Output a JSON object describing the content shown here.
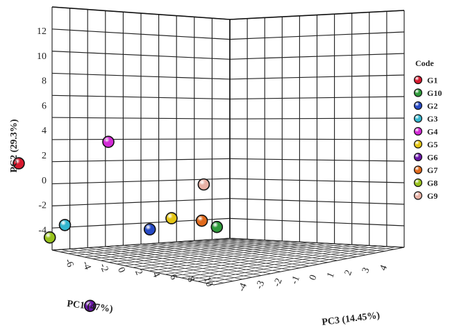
{
  "chart_data": {
    "type": "scatter",
    "projection": "3d",
    "axes": {
      "x": {
        "label": "PC1 (47%)",
        "ticks": [
          "-6",
          "-4",
          "-2",
          "0",
          "2",
          "4",
          "6",
          "8",
          "10"
        ]
      },
      "y": {
        "label": "PC2 (29.3%)",
        "ticks": [
          "12",
          "10",
          "8",
          "6",
          "4",
          "2",
          "0",
          "-2",
          "-4"
        ]
      },
      "z": {
        "label": "PC3 (14.45%)",
        "ticks": [
          "-4",
          "-3",
          "-2",
          "-1",
          "0",
          "1",
          "2",
          "3",
          "4"
        ]
      }
    },
    "grid": true,
    "legend": {
      "title": "Code",
      "placement": "right",
      "entries": [
        {
          "label": "G1",
          "color": "#d7192e"
        },
        {
          "label": "G10",
          "color": "#2e9a3a"
        },
        {
          "label": "G2",
          "color": "#2649c4"
        },
        {
          "label": "G3",
          "color": "#33b6cf"
        },
        {
          "label": "G4",
          "color": "#d22ad6"
        },
        {
          "label": "G5",
          "color": "#e3c414"
        },
        {
          "label": "G6",
          "color": "#6a16a8"
        },
        {
          "label": "G7",
          "color": "#e06a1c"
        },
        {
          "label": "G8",
          "color": "#98c21c"
        },
        {
          "label": "G9",
          "color": "#e8b1a5"
        }
      ]
    },
    "series": [
      {
        "name": "G1",
        "color": "#d7192e",
        "pc1": -5.0,
        "pc2": 3.5,
        "pc3": -1.0
      },
      {
        "name": "G10",
        "color": "#2e9a3a",
        "pc1": 5.5,
        "pc2": -1.5,
        "pc3": 2.5
      },
      {
        "name": "G2",
        "color": "#2649c4",
        "pc1": 3.0,
        "pc2": -1.0,
        "pc3": 0.5
      },
      {
        "name": "G3",
        "color": "#33b6cf",
        "pc1": -1.5,
        "pc2": -0.7,
        "pc3": -1.0
      },
      {
        "name": "G4",
        "color": "#d22ad6",
        "pc1": 0.5,
        "pc2": 5.8,
        "pc3": 0.0
      },
      {
        "name": "G5",
        "color": "#e3c414",
        "pc1": 4.0,
        "pc2": -0.2,
        "pc3": 1.0
      },
      {
        "name": "G6",
        "color": "#6a16a8",
        "pc1": 3.0,
        "pc2": -5.0,
        "pc3": -3.0
      },
      {
        "name": "G7",
        "color": "#e06a1c",
        "pc1": 5.0,
        "pc2": -0.8,
        "pc3": 2.0
      },
      {
        "name": "G8",
        "color": "#98c21c",
        "pc1": -2.0,
        "pc2": -1.5,
        "pc3": -1.5
      },
      {
        "name": "G9",
        "color": "#e8b1a5",
        "pc1": 4.5,
        "pc2": 1.7,
        "pc3": 2.5
      }
    ]
  }
}
